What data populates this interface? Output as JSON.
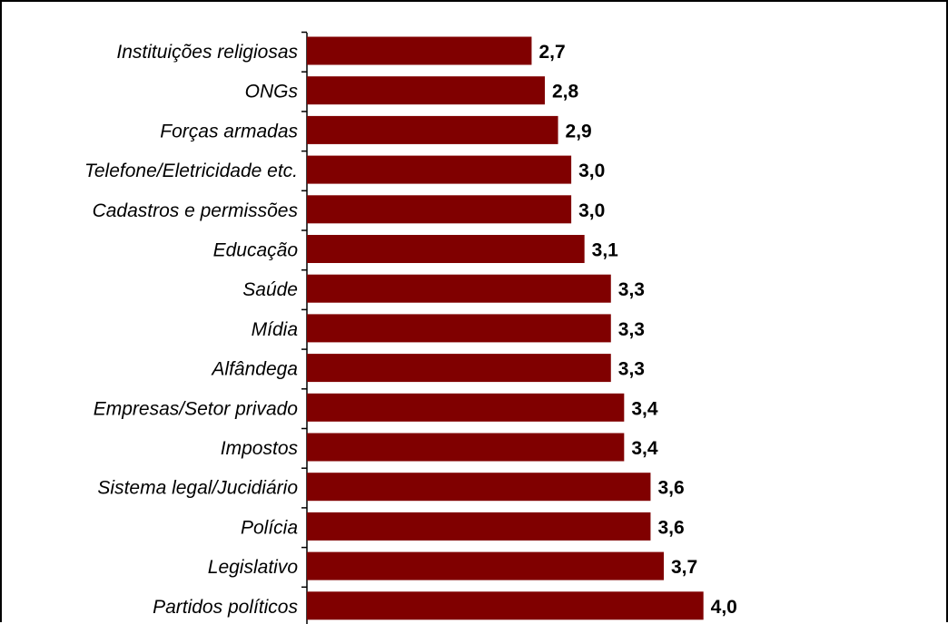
{
  "chart_data": {
    "type": "bar",
    "orientation": "horizontal",
    "categories": [
      "Instituições religiosas",
      "ONGs",
      "Forças armadas",
      "Telefone/Eletricidade etc.",
      "Cadastros e permissões",
      "Educação",
      "Saúde",
      "Mídia",
      "Alfândega",
      "Empresas/Setor privado",
      "Impostos",
      "Sistema legal/Jucidiário",
      "Polícia",
      "Legislativo",
      "Partidos políticos"
    ],
    "values": [
      2.7,
      2.8,
      2.9,
      3.0,
      3.0,
      3.1,
      3.3,
      3.3,
      3.3,
      3.4,
      3.4,
      3.6,
      3.6,
      3.7,
      4.0
    ],
    "value_labels": [
      "2,7",
      "2,8",
      "2,9",
      "3,0",
      "3,0",
      "3,1",
      "3,3",
      "3,3",
      "3,3",
      "3,4",
      "3,4",
      "3,6",
      "3,6",
      "3,7",
      "4,0"
    ],
    "xlim": [
      1,
      5
    ],
    "bar_color": "#800000",
    "grid": false,
    "legend": "none"
  }
}
